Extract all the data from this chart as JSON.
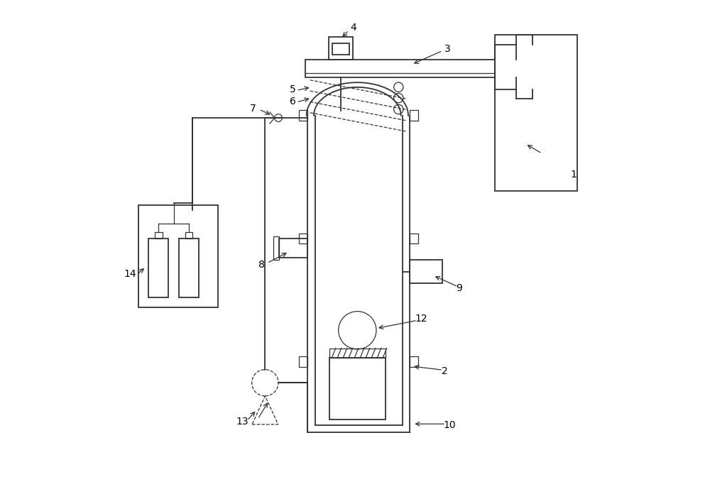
{
  "bg_color": "#ffffff",
  "line_color": "#333333",
  "dpi": 100,
  "fig_w": 10.0,
  "fig_h": 6.72
}
